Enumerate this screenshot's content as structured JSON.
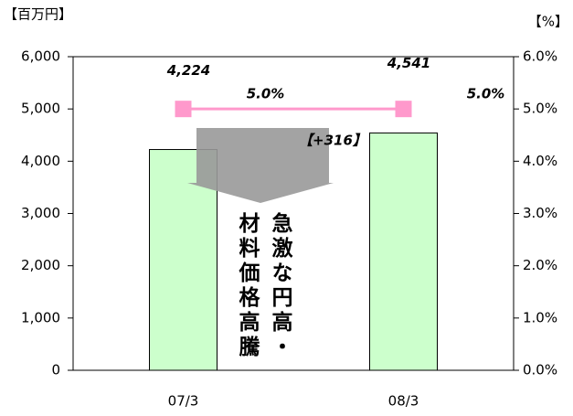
{
  "chart_data": {
    "type": "bar",
    "ylabel": "【百万円】",
    "y2label": "【%】",
    "categories": [
      "07/3",
      "08/3"
    ],
    "series": [
      {
        "type": "bar",
        "color": "#ccffcc",
        "values": [
          4224,
          4541
        ],
        "value_labels": [
          "4,224",
          "4,541"
        ]
      },
      {
        "type": "line",
        "axis": "y2",
        "color": "#ff99cc",
        "values": [
          5.0,
          5.0
        ],
        "value_labels": [
          "5.0%",
          "5.0%"
        ]
      }
    ],
    "ylim": [
      0,
      6000
    ],
    "yticks": [
      0,
      {
        "value": 1000,
        "label": "1,000"
      },
      {
        "value": 2000,
        "label": "2,000"
      },
      {
        "value": 3000,
        "label": "3,000"
      },
      {
        "value": 4000,
        "label": "4,000"
      },
      {
        "value": 5000,
        "label": "5,000"
      },
      {
        "value": 6000,
        "label": "6,000"
      }
    ],
    "y2lim": [
      0,
      6
    ],
    "y2ticks": [
      {
        "value": 0,
        "label": "0.0%"
      },
      {
        "value": 1,
        "label": "1.0%"
      },
      {
        "value": 2,
        "label": "2.0%"
      },
      {
        "value": 3,
        "label": "3.0%"
      },
      {
        "value": 4,
        "label": "4.0%"
      },
      {
        "value": 5,
        "label": "5.0%"
      },
      {
        "value": 6,
        "label": "6.0%"
      }
    ],
    "annotations": [
      "【+316】",
      "急激な円高・",
      "材料価格高騰"
    ]
  }
}
